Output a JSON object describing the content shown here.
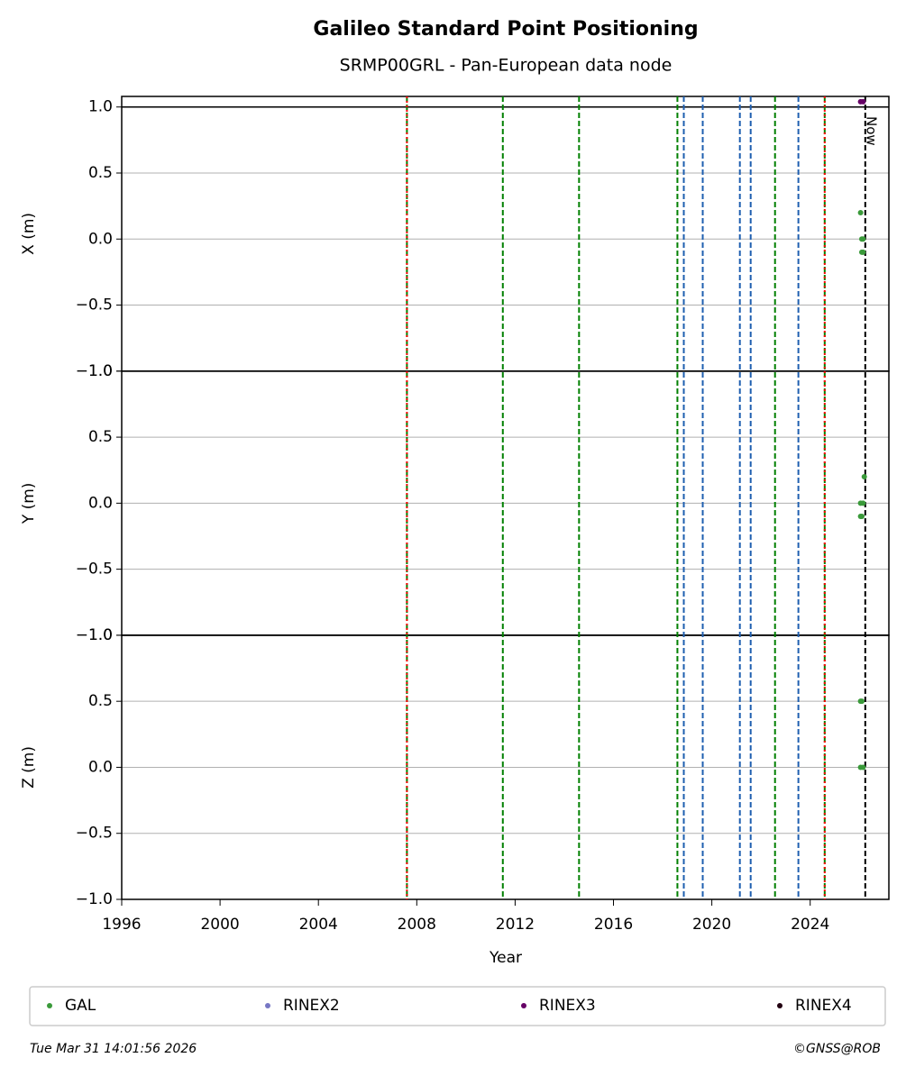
{
  "chart_data": {
    "type": "scatter",
    "title": "Galileo Standard Point Positioning",
    "subtitle": "SRMP00GRL - Pan-European data node",
    "xlabel": "Year",
    "xlim": [
      1996,
      2027.2
    ],
    "xticks": [
      1996,
      2000,
      2004,
      2008,
      2012,
      2016,
      2020,
      2024
    ],
    "series": [
      {
        "name": "GAL",
        "color": "#3a9a3a"
      },
      {
        "name": "RINEX2",
        "color": "#7777c4"
      },
      {
        "name": "RINEX3",
        "color": "#660066"
      },
      {
        "name": "RINEX4",
        "color": "#220011"
      }
    ],
    "panels": [
      {
        "ylabel": "X (m)",
        "ylim": [
          -1,
          1.08
        ],
        "hline": 1,
        "yticks": [
          {
            "value": 1,
            "label": "1.0"
          },
          0.5,
          {
            "value": 0,
            "label": "0.0"
          },
          {
            "value": -0.5,
            "label": "−0.5"
          },
          {
            "value": -1,
            "label": "−1.0"
          }
        ],
        "series": [
          {
            "x": [
              2026.05,
              2026.1,
              2026.15,
              2026.1,
              2026.15
            ],
            "values": [
              0.2,
              0,
              0,
              -0.1,
              -0.1
            ]
          },
          {
            "x": [],
            "values": []
          },
          {
            "x": [
              2026.05,
              2026.15
            ],
            "values": [
              1.04,
              1.04
            ]
          },
          {
            "x": [],
            "values": []
          }
        ]
      },
      {
        "ylabel": "Y (m)",
        "ylim": [
          -1,
          1
        ],
        "hline": 1,
        "yticks": [
          {
            "value": 1,
            "label": "1.0"
          },
          0.5,
          {
            "value": 0,
            "label": "0.0"
          },
          {
            "value": -0.5,
            "label": "−0.5"
          },
          {
            "value": -1,
            "label": "−1.0"
          }
        ],
        "series": [
          {
            "x": [
              2026.2,
              2026.05,
              2026.15,
              2026.05,
              2026.1
            ],
            "values": [
              0.2,
              0,
              0,
              -0.1,
              -0.1
            ]
          },
          {
            "x": [],
            "values": []
          },
          {
            "x": [],
            "values": []
          },
          {
            "x": [],
            "values": []
          }
        ]
      },
      {
        "ylabel": "Z (m)",
        "ylim": [
          -1,
          1
        ],
        "hline": 1,
        "yticks": [
          {
            "value": 1,
            "label": "1.0"
          },
          0.5,
          {
            "value": 0,
            "label": "0.0"
          },
          {
            "value": -0.5,
            "label": "−0.5"
          },
          {
            "value": -1,
            "label": "−1.0"
          }
        ],
        "series": [
          {
            "x": [
              2026.05,
              2026.1,
              2026.05,
              2026.15
            ],
            "values": [
              0.5,
              0.5,
              0,
              0
            ]
          },
          {
            "x": [],
            "values": []
          },
          {
            "x": [],
            "values": []
          },
          {
            "x": [],
            "values": []
          }
        ]
      }
    ],
    "events": [
      {
        "x": 2007.6,
        "color": "#008000",
        "style": "dashed"
      },
      {
        "x": 2007.6,
        "color": "#ff0000",
        "style": "dotted"
      },
      {
        "x": 2011.5,
        "color": "#008000",
        "style": "dashed"
      },
      {
        "x": 2014.6,
        "color": "#008000",
        "style": "dashed"
      },
      {
        "x": 2018.6,
        "color": "#008000",
        "style": "dashed"
      },
      {
        "x": 2018.86,
        "color": "#1f5fb0",
        "style": "dashed"
      },
      {
        "x": 2019.63,
        "color": "#1f5fb0",
        "style": "dashed"
      },
      {
        "x": 2021.14,
        "color": "#1f5fb0",
        "style": "dashed"
      },
      {
        "x": 2021.58,
        "color": "#1f5fb0",
        "style": "dashed"
      },
      {
        "x": 2022.57,
        "color": "#008000",
        "style": "dashed"
      },
      {
        "x": 2023.52,
        "color": "#1f5fb0",
        "style": "dashed"
      },
      {
        "x": 2024.59,
        "color": "#008000",
        "style": "dashed"
      },
      {
        "x": 2024.59,
        "color": "#ff0000",
        "style": "dotted"
      },
      {
        "x": 2026.24,
        "color": "#000000",
        "style": "dashed",
        "label": "Now"
      }
    ],
    "timestamp": "Tue Mar 31 14:01:56 2026",
    "copyright": "©GNSS@ROB"
  }
}
